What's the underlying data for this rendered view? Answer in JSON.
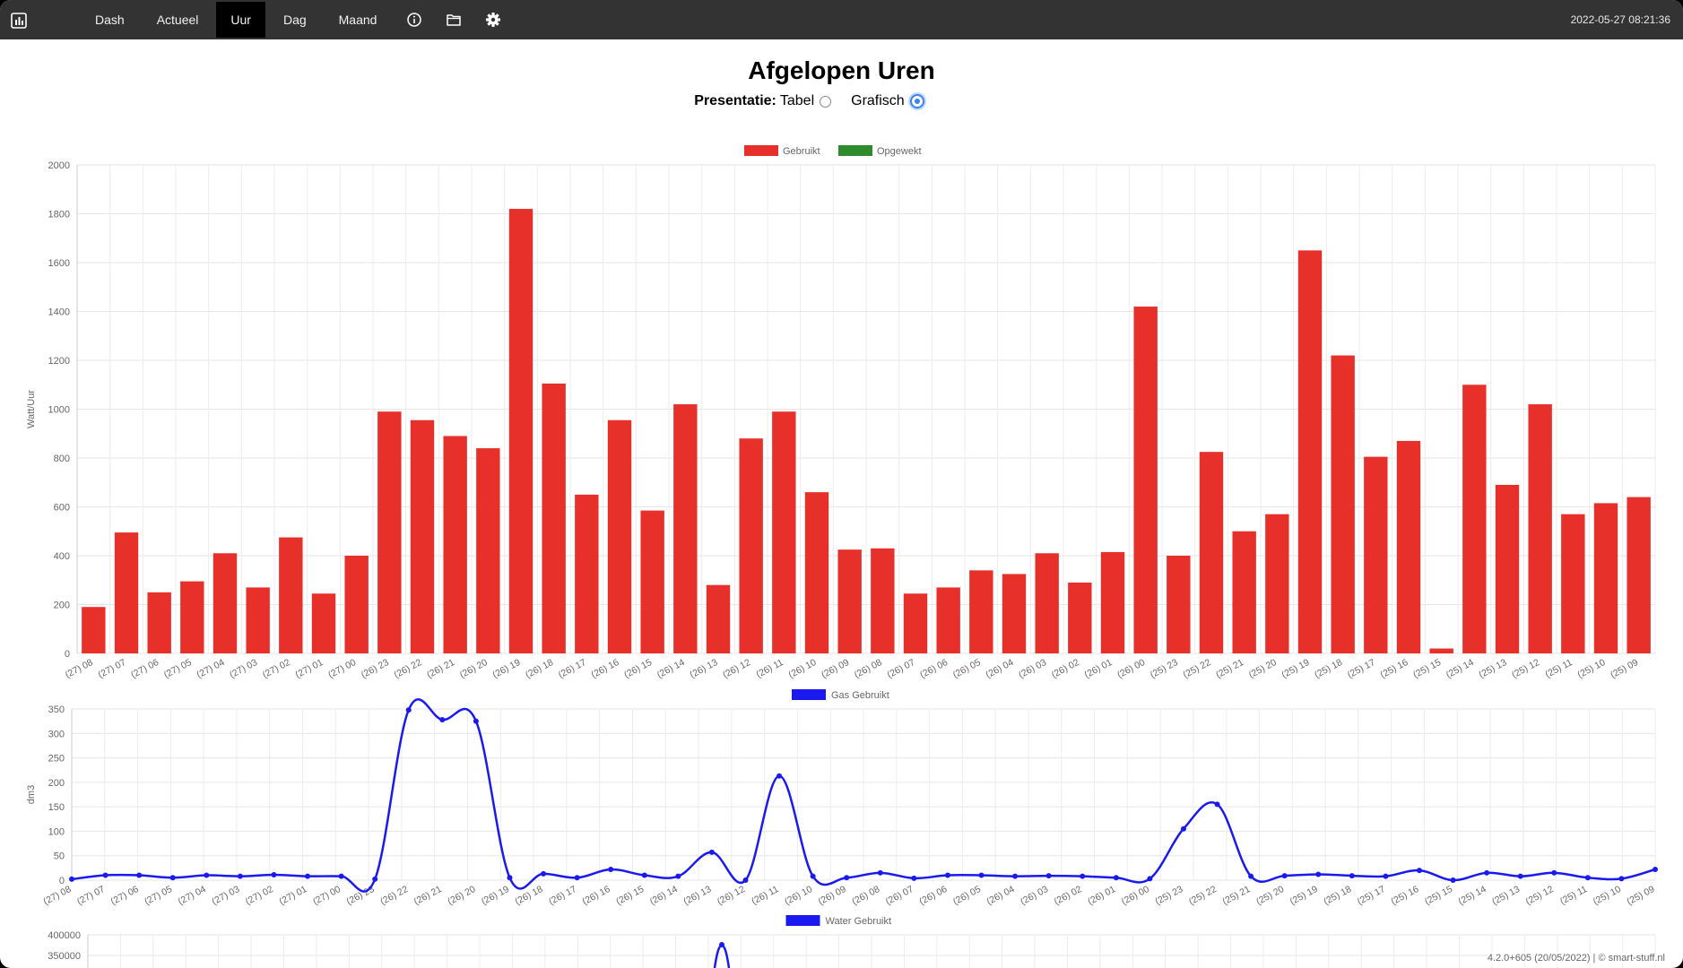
{
  "topbar": {
    "logo_icon": "bar-chart-icon",
    "nav_items": [
      {
        "label": "Dash",
        "active": false
      },
      {
        "label": "Actueel",
        "active": false
      },
      {
        "label": "Uur",
        "active": true
      },
      {
        "label": "Dag",
        "active": false
      },
      {
        "label": "Maand",
        "active": false
      }
    ],
    "icons": [
      "info-icon",
      "folder-icon",
      "gear-icon"
    ],
    "datetime": "2022-05-27 08:21:36"
  },
  "main": {
    "title": "Afgelopen Uren",
    "presentation_label": "Presentatie:",
    "options": [
      {
        "label": "Tabel",
        "selected": false
      },
      {
        "label": "Grafisch",
        "selected": true
      }
    ]
  },
  "footer": {
    "text": "4.2.0+605 (20/05/2022) | © smart-stuff.nl"
  },
  "colors": {
    "used": "#e8302a",
    "generated": "#2e8b2e",
    "gas": "#1a1af0",
    "water": "#1a1af0",
    "topbar": "#333333"
  },
  "chart_data": [
    {
      "type": "bar",
      "ylabel": "Watt/Uur",
      "ylim": [
        0,
        2000
      ],
      "yticks": [
        0,
        200,
        400,
        600,
        800,
        1000,
        1200,
        1400,
        1600,
        1800,
        2000
      ],
      "legend": "top-center",
      "categories": [
        "(27) 08",
        "(27) 07",
        "(27) 06",
        "(27) 05",
        "(27) 04",
        "(27) 03",
        "(27) 02",
        "(27) 01",
        "(27) 00",
        "(26) 23",
        "(26) 22",
        "(26) 21",
        "(26) 20",
        "(26) 19",
        "(26) 18",
        "(26) 17",
        "(26) 16",
        "(26) 15",
        "(26) 14",
        "(26) 13",
        "(26) 12",
        "(26) 11",
        "(26) 10",
        "(26) 09",
        "(26) 08",
        "(26) 07",
        "(26) 06",
        "(26) 05",
        "(26) 04",
        "(26) 03",
        "(26) 02",
        "(26) 01",
        "(26) 00",
        "(25) 23",
        "(25) 22",
        "(25) 21",
        "(25) 20",
        "(25) 19",
        "(25) 18",
        "(25) 17",
        "(25) 16",
        "(25) 15",
        "(25) 14",
        "(25) 13",
        "(25) 12",
        "(25) 11",
        "(25) 10",
        "(25) 09"
      ],
      "series": [
        {
          "name": "Gebruikt",
          "values": [
            190,
            495,
            250,
            295,
            410,
            270,
            475,
            245,
            400,
            990,
            955,
            890,
            840,
            1820,
            1105,
            650,
            955,
            585,
            1020,
            280,
            880,
            990,
            660,
            425,
            430,
            245,
            270,
            340,
            325,
            410,
            290,
            415,
            1420,
            400,
            825,
            500,
            570,
            1650,
            1220,
            805,
            870,
            20,
            1100,
            690,
            1020,
            570,
            615,
            640
          ]
        },
        {
          "name": "Opgewekt",
          "values": [
            0,
            0,
            0,
            0,
            0,
            0,
            0,
            0,
            0,
            0,
            0,
            0,
            0,
            0,
            0,
            0,
            0,
            0,
            0,
            0,
            0,
            0,
            0,
            0,
            0,
            0,
            0,
            0,
            0,
            0,
            0,
            0,
            0,
            0,
            0,
            0,
            0,
            0,
            0,
            0,
            0,
            0,
            0,
            0,
            0,
            0,
            0,
            0
          ]
        }
      ]
    },
    {
      "type": "line",
      "ylabel": "dm3",
      "ylim": [
        0,
        350
      ],
      "yticks": [
        0,
        50,
        100,
        150,
        200,
        250,
        300,
        350
      ],
      "legend": "top-center",
      "categories": [
        "(27) 08",
        "(27) 07",
        "(27) 06",
        "(27) 05",
        "(27) 04",
        "(27) 03",
        "(27) 02",
        "(27) 01",
        "(27) 00",
        "(26) 23",
        "(26) 22",
        "(26) 21",
        "(26) 20",
        "(26) 19",
        "(26) 18",
        "(26) 17",
        "(26) 16",
        "(26) 15",
        "(26) 14",
        "(26) 13",
        "(26) 12",
        "(26) 11",
        "(26) 10",
        "(26) 09",
        "(26) 08",
        "(26) 07",
        "(26) 06",
        "(26) 05",
        "(26) 04",
        "(26) 03",
        "(26) 02",
        "(26) 01",
        "(26) 00",
        "(25) 23",
        "(25) 22",
        "(25) 21",
        "(25) 20",
        "(25) 19",
        "(25) 18",
        "(25) 17",
        "(25) 16",
        "(25) 15",
        "(25) 14",
        "(25) 13",
        "(25) 12",
        "(25) 11",
        "(25) 10",
        "(25) 09"
      ],
      "series": [
        {
          "name": "Gas Gebruikt",
          "values": [
            2,
            10,
            10,
            5,
            10,
            8,
            11,
            8,
            8,
            2,
            348,
            328,
            325,
            5,
            13,
            5,
            22,
            10,
            8,
            57,
            0,
            213,
            8,
            5,
            15,
            4,
            10,
            10,
            8,
            9,
            8,
            5,
            3,
            105,
            155,
            8,
            9,
            12,
            9,
            8,
            20,
            0,
            15,
            8,
            15,
            5,
            3,
            22
          ]
        }
      ]
    },
    {
      "type": "line",
      "ylabel": "",
      "ylim": [
        0,
        400000
      ],
      "yticks": [
        350000,
        400000
      ],
      "legend": "top-center",
      "series": [
        {
          "name": "Water Gebruikt"
        }
      ]
    }
  ]
}
